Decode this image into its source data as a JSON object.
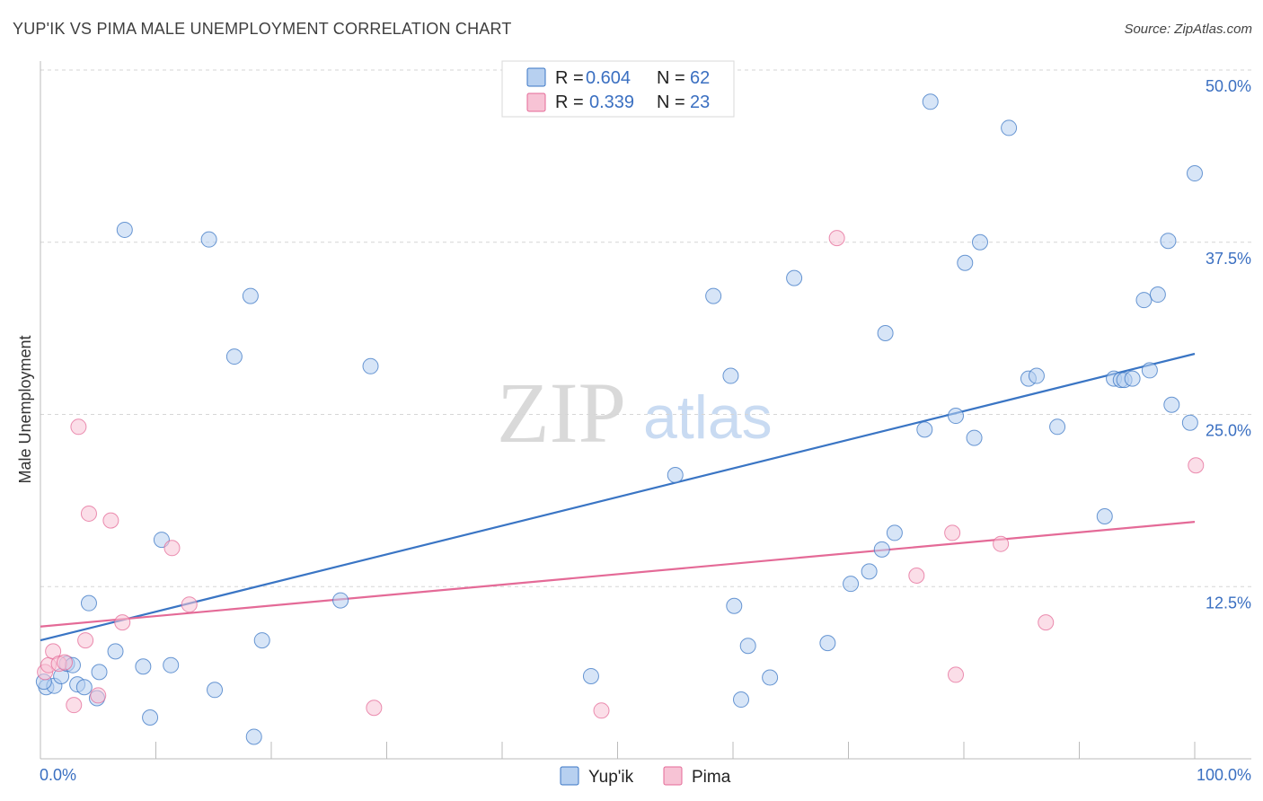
{
  "title": "YUP'IK VS PIMA MALE UNEMPLOYMENT CORRELATION CHART",
  "source": "Source: ZipAtlas.com",
  "watermark": {
    "zip": "ZIP",
    "atlas": "atlas"
  },
  "colors": {
    "blue": "#3a75c4",
    "blue_fill": "#b7d0f0",
    "pink": "#e46a97",
    "pink_fill": "#f7c3d5",
    "grid": "#d6d6d6",
    "tick_label": "#3a6fc1"
  },
  "legend": {
    "r_label": "R =",
    "n_label": "N =",
    "rows": [
      {
        "r": "0.604",
        "n": "62"
      },
      {
        "r": "0.339",
        "n": "23"
      }
    ]
  },
  "chart_data": {
    "type": "scatter",
    "title": "YUP'IK VS PIMA MALE UNEMPLOYMENT CORRELATION CHART",
    "xlabel": "",
    "ylabel": "Male Unemployment",
    "xlim": [
      0,
      100
    ],
    "ylim": [
      0,
      50
    ],
    "x_tick_labels": [
      "0.0%",
      "100.0%"
    ],
    "y_tick_labels": [
      "12.5%",
      "25.0%",
      "37.5%",
      "50.0%"
    ],
    "y_ticks": [
      12.5,
      25,
      37.5,
      50
    ],
    "grid": true,
    "legend_position": "top-center",
    "series": [
      {
        "name": "Yup'ik",
        "color": "#3a75c4",
        "trendline": {
          "x": [
            0,
            100
          ],
          "y": [
            8.6,
            29.4
          ]
        },
        "points": [
          [
            0.5,
            5.2
          ],
          [
            1.2,
            5.3
          ],
          [
            1.8,
            6.0
          ],
          [
            2.3,
            6.9
          ],
          [
            2.8,
            6.8
          ],
          [
            3.2,
            5.4
          ],
          [
            3.8,
            5.2
          ],
          [
            4.2,
            11.3
          ],
          [
            4.9,
            4.4
          ],
          [
            5.1,
            6.3
          ],
          [
            6.5,
            7.8
          ],
          [
            7.3,
            38.4
          ],
          [
            8.9,
            6.7
          ],
          [
            9.5,
            3.0
          ],
          [
            10.5,
            15.9
          ],
          [
            11.3,
            6.8
          ],
          [
            14.6,
            37.7
          ],
          [
            15.1,
            5.0
          ],
          [
            16.8,
            29.2
          ],
          [
            18.2,
            33.6
          ],
          [
            18.5,
            1.6
          ],
          [
            19.2,
            8.6
          ],
          [
            26.0,
            11.5
          ],
          [
            28.6,
            28.5
          ],
          [
            47.7,
            6.0
          ],
          [
            55.0,
            20.6
          ],
          [
            58.3,
            33.6
          ],
          [
            59.8,
            27.8
          ],
          [
            60.1,
            11.1
          ],
          [
            60.7,
            4.3
          ],
          [
            61.3,
            8.2
          ],
          [
            63.2,
            5.9
          ],
          [
            65.3,
            34.9
          ],
          [
            68.2,
            8.4
          ],
          [
            70.2,
            12.7
          ],
          [
            71.8,
            13.6
          ],
          [
            72.9,
            15.2
          ],
          [
            73.2,
            30.9
          ],
          [
            74.0,
            16.4
          ],
          [
            76.6,
            23.9
          ],
          [
            77.1,
            47.7
          ],
          [
            79.3,
            24.9
          ],
          [
            80.1,
            36.0
          ],
          [
            80.9,
            23.3
          ],
          [
            81.4,
            37.5
          ],
          [
            83.9,
            45.8
          ],
          [
            85.6,
            27.6
          ],
          [
            86.3,
            27.8
          ],
          [
            88.1,
            24.1
          ],
          [
            92.2,
            17.6
          ],
          [
            93.0,
            27.6
          ],
          [
            93.6,
            27.5
          ],
          [
            93.9,
            27.5
          ],
          [
            94.6,
            27.6
          ],
          [
            95.6,
            33.3
          ],
          [
            96.1,
            28.2
          ],
          [
            96.8,
            33.7
          ],
          [
            97.7,
            37.6
          ],
          [
            98.0,
            25.7
          ],
          [
            99.6,
            24.4
          ],
          [
            100.0,
            42.5
          ],
          [
            0.3,
            5.6
          ]
        ]
      },
      {
        "name": "Pima",
        "color": "#e46a97",
        "trendline": {
          "x": [
            0,
            100
          ],
          "y": [
            9.6,
            17.2
          ]
        },
        "points": [
          [
            0.4,
            6.3
          ],
          [
            0.7,
            6.8
          ],
          [
            1.1,
            7.8
          ],
          [
            1.6,
            6.9
          ],
          [
            2.1,
            7.0
          ],
          [
            2.9,
            3.9
          ],
          [
            3.3,
            24.1
          ],
          [
            3.9,
            8.6
          ],
          [
            4.2,
            17.8
          ],
          [
            5.0,
            4.6
          ],
          [
            6.1,
            17.3
          ],
          [
            7.1,
            9.9
          ],
          [
            11.4,
            15.3
          ],
          [
            12.9,
            11.2
          ],
          [
            28.9,
            3.7
          ],
          [
            48.6,
            3.5
          ],
          [
            69.0,
            37.8
          ],
          [
            75.9,
            13.3
          ],
          [
            79.0,
            16.4
          ],
          [
            79.3,
            6.1
          ],
          [
            83.2,
            15.6
          ],
          [
            87.1,
            9.9
          ],
          [
            100.1,
            21.3
          ]
        ]
      }
    ]
  },
  "bottom_legend": [
    {
      "label": "Yup'ik"
    },
    {
      "label": "Pima"
    }
  ]
}
